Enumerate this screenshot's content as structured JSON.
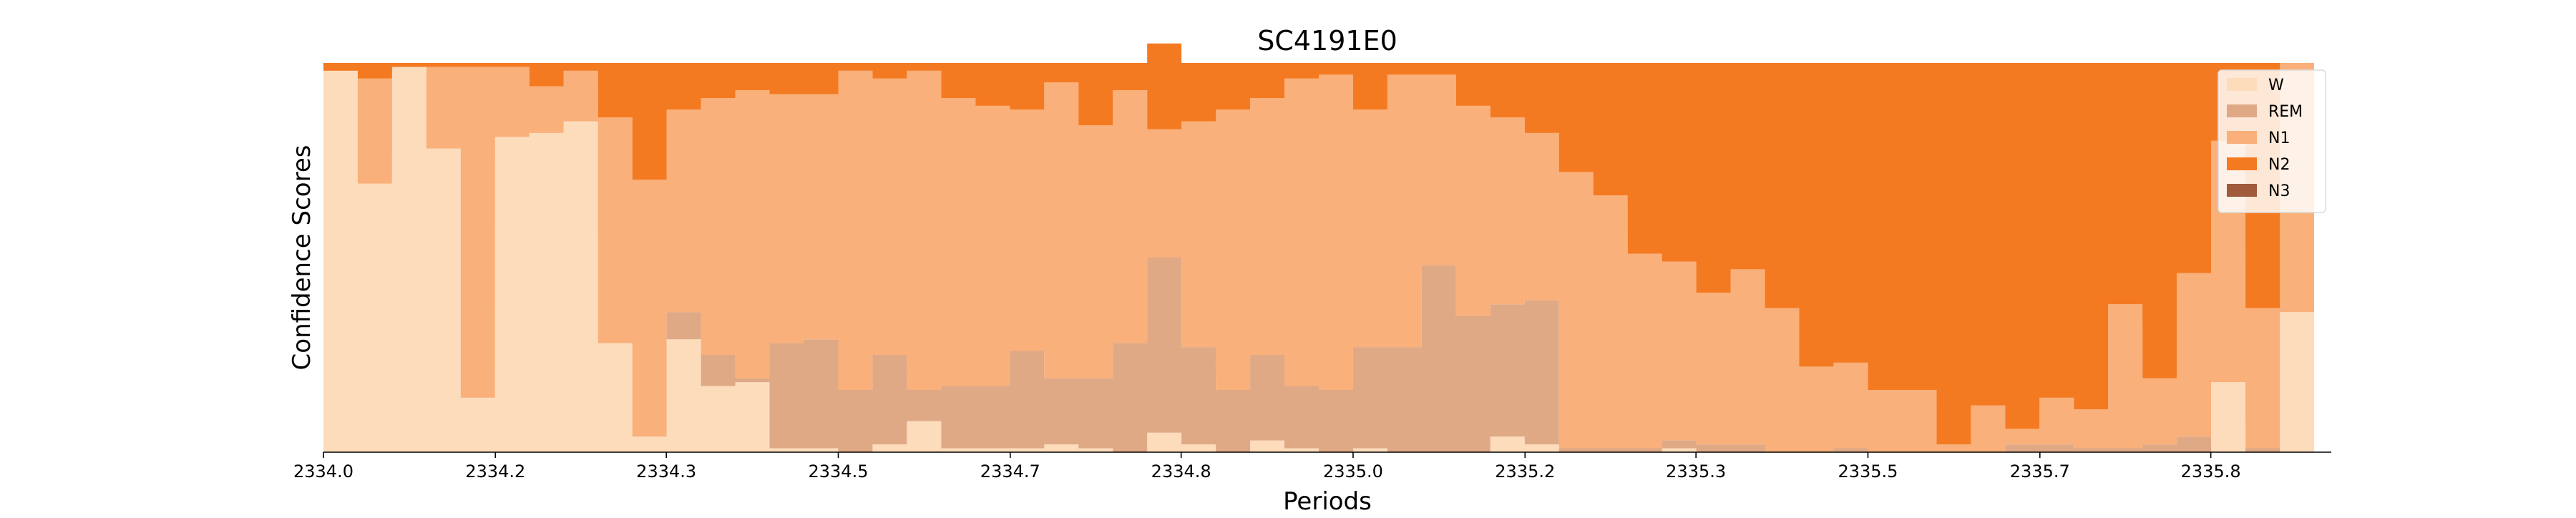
{
  "chart_data": {
    "type": "area",
    "subtype": "stacked-step-area",
    "title": "SC4191E0",
    "xlabel": "Periods",
    "ylabel": "Confidence Scores",
    "xlim": [
      2334.0,
      2335.95
    ],
    "ylim": [
      0,
      1
    ],
    "y_ticks_visible": false,
    "grid": false,
    "legend_position": "top-right",
    "x_tick_labels": [
      "2334.0",
      "2334.2",
      "2334.3",
      "2334.5",
      "2334.7",
      "2334.8",
      "2335.0",
      "2335.2",
      "2335.3",
      "2335.5",
      "2335.7",
      "2335.8"
    ],
    "x_tick_positions": [
      2334.0,
      2334.167,
      2334.333,
      2334.5,
      2334.667,
      2334.833,
      2335.0,
      2335.167,
      2335.333,
      2335.5,
      2335.667,
      2335.833
    ],
    "x": [
      2334.0,
      2334.0333,
      2334.0667,
      2334.1,
      2334.1333,
      2334.1667,
      2334.2,
      2334.2333,
      2334.2667,
      2334.3,
      2334.3333,
      2334.3667,
      2334.4,
      2334.4333,
      2334.4667,
      2334.5,
      2334.5333,
      2334.5667,
      2334.6,
      2334.6333,
      2334.6667,
      2334.7,
      2334.7333,
      2334.7667,
      2334.8,
      2334.8333,
      2334.8667,
      2334.9,
      2334.9333,
      2334.9667,
      2335.0,
      2335.0333,
      2335.0667,
      2335.1,
      2335.1333,
      2335.1667,
      2335.2,
      2335.2333,
      2335.2667,
      2335.3,
      2335.3333,
      2335.3667,
      2335.4,
      2335.4333,
      2335.4667,
      2335.5,
      2335.5333,
      2335.5667,
      2335.6,
      2335.6333,
      2335.6667,
      2335.7,
      2335.7333,
      2335.7667,
      2335.8,
      2335.8333,
      2335.8667,
      2335.9
    ],
    "series": [
      {
        "name": "W",
        "color": "#fddcbc",
        "values": [
          0.98,
          0.69,
          0.99,
          0.78,
          0.14,
          0.81,
          0.82,
          0.85,
          0.28,
          0.04,
          0.29,
          0.17,
          0.18,
          0.01,
          0.01,
          0.0,
          0.02,
          0.08,
          0.01,
          0.01,
          0.01,
          0.02,
          0.01,
          0.0,
          0.05,
          0.02,
          0.0,
          0.03,
          0.01,
          0.0,
          0.01,
          0.0,
          0.0,
          0.0,
          0.04,
          0.02,
          0.0,
          0.0,
          0.0,
          0.01,
          0.0,
          0.0,
          0.0,
          0.0,
          0.0,
          0.0,
          0.0,
          0.0,
          0.0,
          0.0,
          0.0,
          0.0,
          0.0,
          0.0,
          0.0,
          0.18,
          0.0,
          0.36
        ]
      },
      {
        "name": "REM",
        "color": "#dfa986",
        "values": [
          0.0,
          0.0,
          0.0,
          0.0,
          0.0,
          0.0,
          0.0,
          0.0,
          0.0,
          0.0,
          0.07,
          0.08,
          0.01,
          0.27,
          0.28,
          0.16,
          0.23,
          0.08,
          0.16,
          0.16,
          0.25,
          0.17,
          0.18,
          0.28,
          0.45,
          0.25,
          0.16,
          0.22,
          0.16,
          0.16,
          0.26,
          0.27,
          0.48,
          0.35,
          0.34,
          0.37,
          0.01,
          0.01,
          0.01,
          0.02,
          0.02,
          0.02,
          0.0,
          0.0,
          0.01,
          0.0,
          0.0,
          0.0,
          0.0,
          0.02,
          0.02,
          0.01,
          0.01,
          0.02,
          0.04,
          0.0,
          0.01,
          0.0
        ]
      },
      {
        "name": "N1",
        "color": "#f9b07a",
        "values": [
          0.0,
          0.27,
          0.0,
          0.21,
          0.85,
          0.18,
          0.12,
          0.13,
          0.58,
          0.66,
          0.52,
          0.66,
          0.74,
          0.64,
          0.63,
          0.82,
          0.71,
          0.82,
          0.74,
          0.72,
          0.62,
          0.76,
          0.65,
          0.65,
          0.33,
          0.58,
          0.72,
          0.66,
          0.79,
          0.81,
          0.61,
          0.7,
          0.49,
          0.54,
          0.48,
          0.43,
          0.71,
          0.65,
          0.5,
          0.46,
          0.39,
          0.45,
          0.37,
          0.22,
          0.22,
          0.16,
          0.16,
          0.02,
          0.12,
          0.04,
          0.12,
          0.1,
          0.37,
          0.17,
          0.42,
          0.62,
          0.36,
          0.64
        ]
      },
      {
        "name": "N2",
        "color": "#f47a22",
        "values": [
          0.02,
          0.04,
          0.01,
          0.01,
          0.01,
          0.01,
          0.06,
          0.02,
          0.14,
          0.3,
          0.12,
          0.09,
          0.07,
          0.08,
          0.08,
          0.02,
          0.04,
          0.02,
          0.09,
          0.11,
          0.12,
          0.05,
          0.16,
          0.07,
          0.22,
          0.15,
          0.12,
          0.09,
          0.04,
          0.03,
          0.12,
          0.03,
          0.03,
          0.11,
          0.14,
          0.18,
          0.28,
          0.34,
          0.49,
          0.51,
          0.59,
          0.53,
          0.63,
          0.78,
          0.77,
          0.84,
          0.84,
          0.98,
          0.88,
          0.94,
          0.86,
          0.89,
          0.62,
          0.81,
          0.54,
          0.2,
          0.63,
          0.0
        ]
      },
      {
        "name": "N3",
        "color": "#a05a3c",
        "values": [
          0.0,
          0.0,
          0.0,
          0.0,
          0.0,
          0.0,
          0.0,
          0.0,
          0.0,
          0.0,
          0.0,
          0.0,
          0.0,
          0.0,
          0.0,
          0.0,
          0.0,
          0.0,
          0.0,
          0.0,
          0.0,
          0.0,
          0.0,
          0.0,
          0.0,
          0.0,
          0.0,
          0.0,
          0.0,
          0.0,
          0.0,
          0.0,
          0.0,
          0.0,
          0.0,
          0.0,
          0.0,
          0.0,
          0.0,
          0.0,
          0.0,
          0.0,
          0.0,
          0.0,
          0.0,
          0.0,
          0.0,
          0.0,
          0.0,
          0.0,
          0.0,
          0.0,
          0.0,
          0.0,
          0.0,
          0.0,
          0.0,
          0.0
        ]
      }
    ]
  }
}
